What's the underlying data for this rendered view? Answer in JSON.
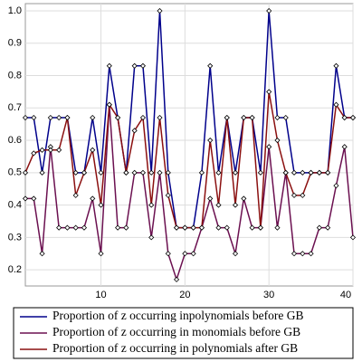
{
  "chart_data": {
    "type": "line",
    "x": [
      1,
      2,
      3,
      4,
      5,
      6,
      7,
      8,
      9,
      10,
      11,
      12,
      13,
      14,
      15,
      16,
      17,
      18,
      19,
      20,
      21,
      22,
      23,
      24,
      25,
      26,
      27,
      28,
      29,
      30,
      31,
      32,
      33,
      34,
      35,
      36,
      37,
      38,
      39,
      40
    ],
    "series": [
      {
        "name": "Proportion of z occurring inpolynomials before GB",
        "color": "#00008b",
        "values": [
          0.67,
          0.67,
          0.5,
          0.67,
          0.67,
          0.67,
          0.5,
          0.5,
          0.67,
          0.5,
          0.83,
          0.67,
          0.5,
          0.83,
          0.83,
          0.5,
          1.0,
          0.5,
          0.33,
          0.33,
          0.33,
          0.5,
          0.83,
          0.5,
          0.67,
          0.5,
          0.67,
          0.67,
          0.5,
          1.0,
          0.67,
          0.67,
          0.5,
          0.5,
          0.5,
          0.5,
          0.5,
          0.83,
          0.67,
          0.67
        ]
      },
      {
        "name": "Proportion of z occurring in monomials before GB",
        "color": "#6b1050",
        "values": [
          0.42,
          0.42,
          0.25,
          0.58,
          0.33,
          0.33,
          0.33,
          0.33,
          0.42,
          0.25,
          0.71,
          0.33,
          0.33,
          0.5,
          0.5,
          0.3,
          0.5,
          0.25,
          0.17,
          0.25,
          0.25,
          0.33,
          0.42,
          0.33,
          0.33,
          0.25,
          0.42,
          0.33,
          0.33,
          0.58,
          0.33,
          0.5,
          0.25,
          0.25,
          0.25,
          0.33,
          0.33,
          0.46,
          0.58,
          0.3
        ]
      },
      {
        "name": "Proportion of z occurring in polynomials after GB",
        "color": "#8b1010",
        "values": [
          0.5,
          0.56,
          0.57,
          0.57,
          0.57,
          0.67,
          0.43,
          0.5,
          0.57,
          0.4,
          0.71,
          0.67,
          0.5,
          0.63,
          0.67,
          0.4,
          0.67,
          0.43,
          0.33,
          0.33,
          0.33,
          0.33,
          0.6,
          0.4,
          0.67,
          0.4,
          0.67,
          0.67,
          0.33,
          0.75,
          0.6,
          0.5,
          0.43,
          0.43,
          0.5,
          0.5,
          0.5,
          0.71,
          0.67,
          0.67
        ]
      }
    ],
    "xlim": [
      1,
      40
    ],
    "xticks": [
      10,
      20,
      30,
      40
    ],
    "ylim": [
      0.15,
      1.0
    ],
    "yticks": [
      0.2,
      0.3,
      0.4,
      0.5,
      0.6,
      0.7,
      0.8,
      0.9,
      {
        "value": 1,
        "label": "1.0"
      }
    ],
    "grid": true,
    "legend": "bottom"
  }
}
